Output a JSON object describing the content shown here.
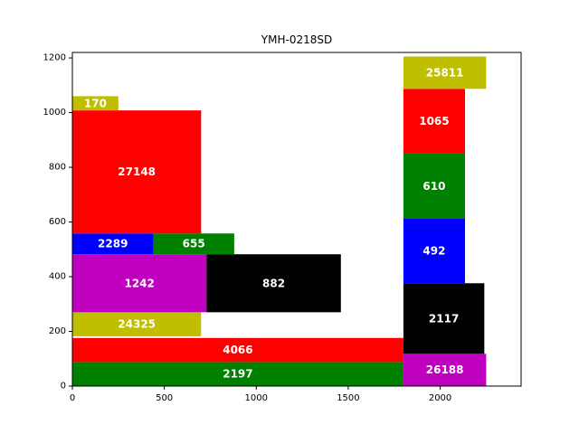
{
  "chart_data": {
    "type": "treemap-packing",
    "title": "YMH-0218SD",
    "xlabel": "",
    "ylabel": "",
    "xlim": [
      0,
      2440
    ],
    "ylim": [
      0,
      1220
    ],
    "xticks": [
      0,
      500,
      1000,
      1500,
      2000
    ],
    "yticks": [
      0,
      200,
      400,
      600,
      800,
      1000,
      1200
    ],
    "grid": false,
    "legend": "none",
    "rectangles": [
      {
        "label": "2197",
        "x": 0,
        "y": 0,
        "w": 1800,
        "h": 88,
        "color": "#008000"
      },
      {
        "label": "4066",
        "x": 0,
        "y": 88,
        "w": 1800,
        "h": 88,
        "color": "#ff0000"
      },
      {
        "label": "24325",
        "x": 0,
        "y": 270,
        "w": 700,
        "h": 0,
        "color": "#bfbf00"
      },
      {
        "label": "1242",
        "x": 0,
        "y": 270,
        "w": 730,
        "h": 212,
        "color": "#bf00bf"
      },
      {
        "label": "882",
        "x": 730,
        "y": 270,
        "w": 730,
        "h": 212,
        "color": "#000000"
      },
      {
        "label": "2289",
        "x": 0,
        "y": 482,
        "w": 440,
        "h": 76,
        "color": "#0000ff"
      },
      {
        "label": "655",
        "x": 440,
        "y": 482,
        "w": 440,
        "h": 76,
        "color": "#008000"
      },
      {
        "label": "27148",
        "x": 0,
        "y": 558,
        "w": 700,
        "h": 450,
        "color": "#ff0000"
      },
      {
        "label": "170",
        "x": 0,
        "y": 1008,
        "w": 250,
        "h": 52,
        "color": "#bfbf00"
      },
      {
        "label": "26188",
        "x": 1800,
        "y": 0,
        "w": 450,
        "h": 118,
        "color": "#bf00bf"
      },
      {
        "label": "2117",
        "x": 1800,
        "y": 118,
        "w": 440,
        "h": 258,
        "color": "#000000"
      },
      {
        "label": "492",
        "x": 1800,
        "y": 376,
        "w": 335,
        "h": 237,
        "color": "#0000ff"
      },
      {
        "label": "610",
        "x": 1800,
        "y": 613,
        "w": 335,
        "h": 237,
        "color": "#008000"
      },
      {
        "label": "1065",
        "x": 1800,
        "y": 850,
        "w": 335,
        "h": 237,
        "color": "#ff0000"
      },
      {
        "label": "25811",
        "x": 1800,
        "y": 1087,
        "w": 450,
        "h": 118,
        "color": "#bfbf00"
      }
    ]
  }
}
